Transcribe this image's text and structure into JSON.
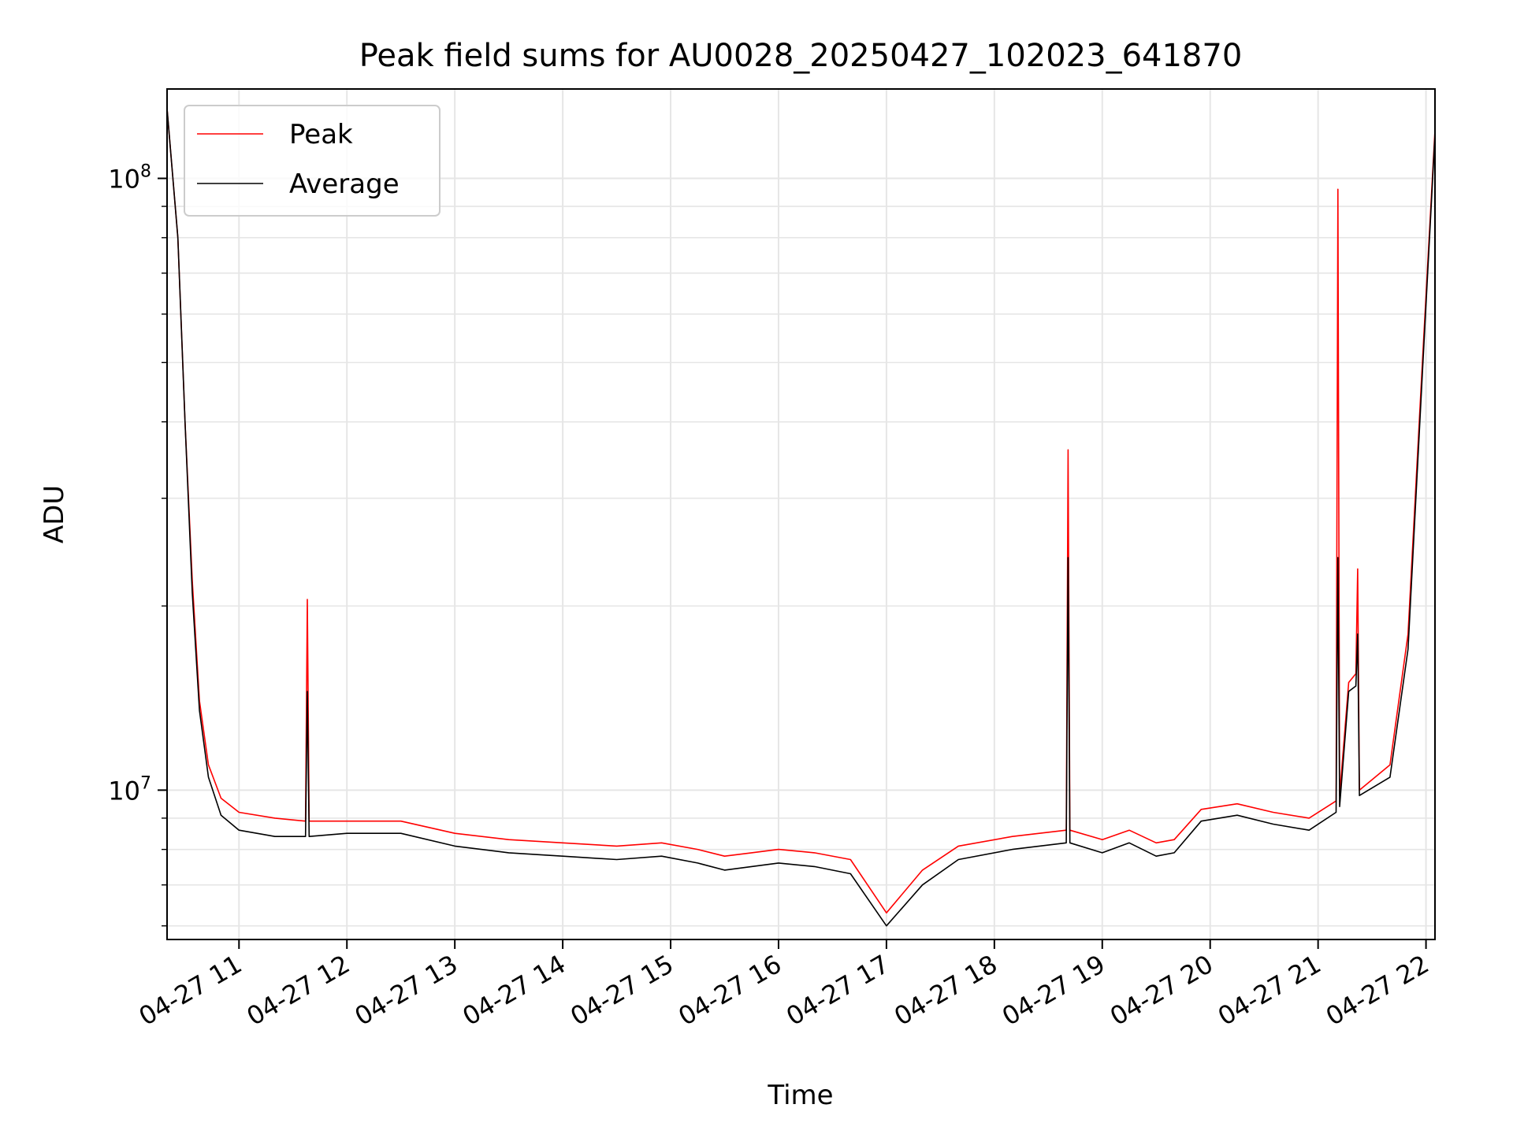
{
  "chart_data": {
    "type": "line",
    "title": "Peak field sums for AU0028_20250427_102023_641870",
    "xlabel": "Time",
    "ylabel": "ADU",
    "yscale": "log",
    "xlim": [
      "2025-04-27 10:20",
      "2025-04-27 22:05"
    ],
    "ylim": [
      5700000,
      140000000
    ],
    "grid": true,
    "legend_position": "top-left",
    "x_ticks": [
      "2025-04-27 11:00",
      "2025-04-27 12:00",
      "2025-04-27 13:00",
      "2025-04-27 14:00",
      "2025-04-27 15:00",
      "2025-04-27 16:00",
      "2025-04-27 17:00",
      "2025-04-27 18:00",
      "2025-04-27 19:00",
      "2025-04-27 20:00",
      "2025-04-27 21:00",
      "2025-04-27 22:00"
    ],
    "x_tick_labels": [
      "04-27 11",
      "04-27 12",
      "04-27 13",
      "04-27 14",
      "04-27 15",
      "04-27 16",
      "04-27 17",
      "04-27 18",
      "04-27 19",
      "04-27 20",
      "04-27 21",
      "04-27 22"
    ],
    "y_ticks": [
      10000000,
      100000000
    ],
    "y_tick_labels": [
      {
        "base": "10",
        "exp": "7"
      },
      {
        "base": "10",
        "exp": "8"
      }
    ],
    "series": [
      {
        "name": "Peak",
        "color": "#ff0000",
        "points": [
          [
            "2025-04-27 10:20",
            130000000
          ],
          [
            "2025-04-27 10:26",
            80000000
          ],
          [
            "2025-04-27 10:30",
            40000000
          ],
          [
            "2025-04-27 10:34",
            22000000
          ],
          [
            "2025-04-27 10:38",
            14000000
          ],
          [
            "2025-04-27 10:43",
            11000000
          ],
          [
            "2025-04-27 10:50",
            9700000
          ],
          [
            "2025-04-27 11:00",
            9200000
          ],
          [
            "2025-04-27 11:20",
            9000000
          ],
          [
            "2025-04-27 11:37",
            8900000
          ],
          [
            "2025-04-27 11:38",
            20500000
          ],
          [
            "2025-04-27 11:39",
            8900000
          ],
          [
            "2025-04-27 12:00",
            8900000
          ],
          [
            "2025-04-27 12:30",
            8900000
          ],
          [
            "2025-04-27 13:00",
            8500000
          ],
          [
            "2025-04-27 13:30",
            8300000
          ],
          [
            "2025-04-27 14:00",
            8200000
          ],
          [
            "2025-04-27 14:30",
            8100000
          ],
          [
            "2025-04-27 14:55",
            8200000
          ],
          [
            "2025-04-27 15:15",
            8000000
          ],
          [
            "2025-04-27 15:30",
            7800000
          ],
          [
            "2025-04-27 15:45",
            7900000
          ],
          [
            "2025-04-27 16:00",
            8000000
          ],
          [
            "2025-04-27 16:20",
            7900000
          ],
          [
            "2025-04-27 16:40",
            7700000
          ],
          [
            "2025-04-27 17:00",
            6300000
          ],
          [
            "2025-04-27 17:20",
            7400000
          ],
          [
            "2025-04-27 17:40",
            8100000
          ],
          [
            "2025-04-27 18:10",
            8400000
          ],
          [
            "2025-04-27 18:40",
            8600000
          ],
          [
            "2025-04-27 18:41",
            36000000
          ],
          [
            "2025-04-27 18:42",
            8600000
          ],
          [
            "2025-04-27 19:00",
            8300000
          ],
          [
            "2025-04-27 19:15",
            8600000
          ],
          [
            "2025-04-27 19:30",
            8200000
          ],
          [
            "2025-04-27 19:40",
            8300000
          ],
          [
            "2025-04-27 19:55",
            9300000
          ],
          [
            "2025-04-27 20:15",
            9500000
          ],
          [
            "2025-04-27 20:35",
            9200000
          ],
          [
            "2025-04-27 20:55",
            9000000
          ],
          [
            "2025-04-27 21:10",
            9600000
          ],
          [
            "2025-04-27 21:11",
            96000000
          ],
          [
            "2025-04-27 21:12",
            9800000
          ],
          [
            "2025-04-27 21:17",
            15000000
          ],
          [
            "2025-04-27 21:21",
            15500000
          ],
          [
            "2025-04-27 21:22",
            23000000
          ],
          [
            "2025-04-27 21:23",
            10000000
          ],
          [
            "2025-04-27 21:40",
            11000000
          ],
          [
            "2025-04-27 21:50",
            18000000
          ],
          [
            "2025-04-27 21:58",
            50000000
          ],
          [
            "2025-04-27 22:05",
            120000000
          ]
        ]
      },
      {
        "name": "Average",
        "color": "#000000",
        "points": [
          [
            "2025-04-27 10:20",
            130000000
          ],
          [
            "2025-04-27 10:26",
            80000000
          ],
          [
            "2025-04-27 10:30",
            40000000
          ],
          [
            "2025-04-27 10:34",
            21000000
          ],
          [
            "2025-04-27 10:38",
            13500000
          ],
          [
            "2025-04-27 10:43",
            10500000
          ],
          [
            "2025-04-27 10:50",
            9100000
          ],
          [
            "2025-04-27 11:00",
            8600000
          ],
          [
            "2025-04-27 11:20",
            8400000
          ],
          [
            "2025-04-27 11:37",
            8400000
          ],
          [
            "2025-04-27 11:38",
            14500000
          ],
          [
            "2025-04-27 11:39",
            8400000
          ],
          [
            "2025-04-27 12:00",
            8500000
          ],
          [
            "2025-04-27 12:30",
            8500000
          ],
          [
            "2025-04-27 13:00",
            8100000
          ],
          [
            "2025-04-27 13:30",
            7900000
          ],
          [
            "2025-04-27 14:00",
            7800000
          ],
          [
            "2025-04-27 14:30",
            7700000
          ],
          [
            "2025-04-27 14:55",
            7800000
          ],
          [
            "2025-04-27 15:15",
            7600000
          ],
          [
            "2025-04-27 15:30",
            7400000
          ],
          [
            "2025-04-27 15:45",
            7500000
          ],
          [
            "2025-04-27 16:00",
            7600000
          ],
          [
            "2025-04-27 16:20",
            7500000
          ],
          [
            "2025-04-27 16:40",
            7300000
          ],
          [
            "2025-04-27 17:00",
            6000000
          ],
          [
            "2025-04-27 17:20",
            7000000
          ],
          [
            "2025-04-27 17:40",
            7700000
          ],
          [
            "2025-04-27 18:10",
            8000000
          ],
          [
            "2025-04-27 18:40",
            8200000
          ],
          [
            "2025-04-27 18:41",
            24000000
          ],
          [
            "2025-04-27 18:42",
            8200000
          ],
          [
            "2025-04-27 19:00",
            7900000
          ],
          [
            "2025-04-27 19:15",
            8200000
          ],
          [
            "2025-04-27 19:30",
            7800000
          ],
          [
            "2025-04-27 19:40",
            7900000
          ],
          [
            "2025-04-27 19:55",
            8900000
          ],
          [
            "2025-04-27 20:15",
            9100000
          ],
          [
            "2025-04-27 20:35",
            8800000
          ],
          [
            "2025-04-27 20:55",
            8600000
          ],
          [
            "2025-04-27 21:10",
            9200000
          ],
          [
            "2025-04-27 21:11",
            24000000
          ],
          [
            "2025-04-27 21:12",
            9400000
          ],
          [
            "2025-04-27 21:17",
            14500000
          ],
          [
            "2025-04-27 21:21",
            14800000
          ],
          [
            "2025-04-27 21:22",
            18000000
          ],
          [
            "2025-04-27 21:23",
            9800000
          ],
          [
            "2025-04-27 21:40",
            10500000
          ],
          [
            "2025-04-27 21:50",
            17000000
          ],
          [
            "2025-04-27 21:58",
            48000000
          ],
          [
            "2025-04-27 22:05",
            118000000
          ]
        ]
      }
    ]
  }
}
